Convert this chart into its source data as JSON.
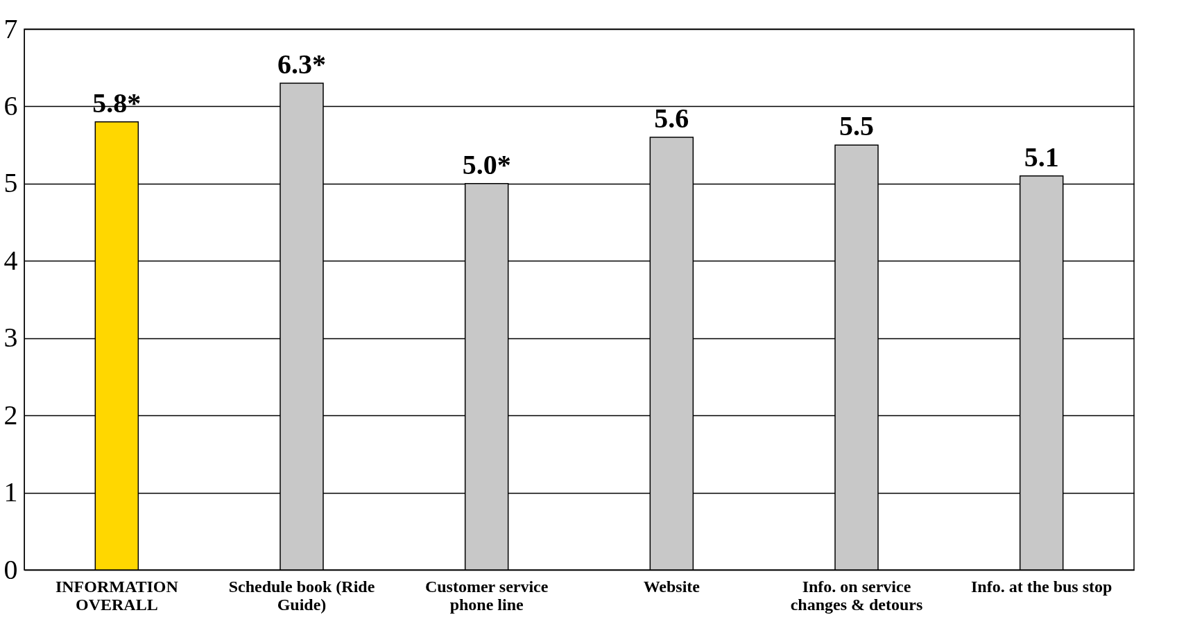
{
  "chart_data": {
    "type": "bar",
    "categories": [
      "INFORMATION OVERALL",
      "Schedule book (Ride Guide)",
      "Customer service phone line",
      "Website",
      "Info. on service changes & detours",
      "Info. at the bus stop"
    ],
    "values": [
      5.8,
      6.3,
      5.0,
      5.6,
      5.5,
      5.1
    ],
    "colors": [
      "#ffd700",
      "#c8c8c8",
      "#c8c8c8",
      "#c8c8c8",
      "#c8c8c8",
      "#c8c8c8"
    ],
    "value_labels": [
      "5.8*",
      "6.3*",
      "5.0*",
      "5.6",
      "5.5",
      "5.1"
    ],
    "ylim": [
      0,
      7
    ],
    "yticks": [
      0,
      1,
      2,
      3,
      4,
      5,
      6,
      7
    ],
    "grid": "y"
  }
}
